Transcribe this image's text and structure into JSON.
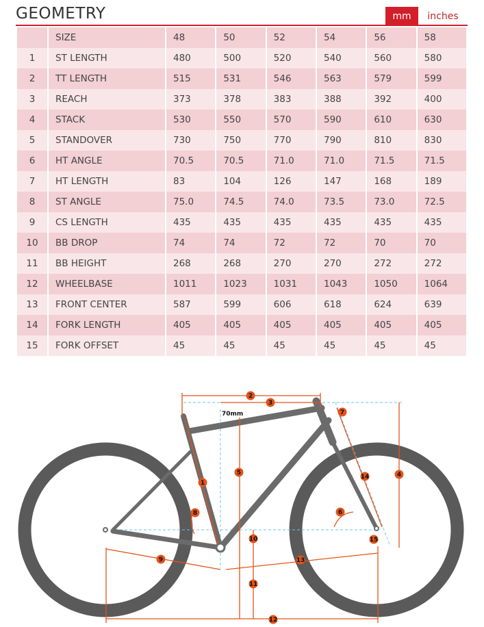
{
  "header": {
    "title": "GEOMETRY",
    "units": {
      "active": "mm",
      "inactive": "inches"
    }
  },
  "table": {
    "size_label": "SIZE",
    "sizes": [
      "48",
      "50",
      "52",
      "54",
      "56",
      "58"
    ],
    "rows": [
      {
        "num": "1",
        "label": "ST LENGTH",
        "values": [
          "480",
          "500",
          "520",
          "540",
          "560",
          "580"
        ]
      },
      {
        "num": "2",
        "label": "TT LENGTH",
        "values": [
          "515",
          "531",
          "546",
          "563",
          "579",
          "599"
        ]
      },
      {
        "num": "3",
        "label": "REACH",
        "values": [
          "373",
          "378",
          "383",
          "388",
          "392",
          "400"
        ]
      },
      {
        "num": "4",
        "label": "STACK",
        "values": [
          "530",
          "550",
          "570",
          "590",
          "610",
          "630"
        ]
      },
      {
        "num": "5",
        "label": "STANDOVER",
        "values": [
          "730",
          "750",
          "770",
          "790",
          "810",
          "830"
        ]
      },
      {
        "num": "6",
        "label": "HT ANGLE",
        "values": [
          "70.5",
          "70.5",
          "71.0",
          "71.0",
          "71.5",
          "71.5"
        ]
      },
      {
        "num": "7",
        "label": "HT LENGTH",
        "values": [
          "83",
          "104",
          "126",
          "147",
          "168",
          "189"
        ]
      },
      {
        "num": "8",
        "label": "ST ANGLE",
        "values": [
          "75.0",
          "74.5",
          "74.0",
          "73.5",
          "73.0",
          "72.5"
        ]
      },
      {
        "num": "9",
        "label": "CS LENGTH",
        "values": [
          "435",
          "435",
          "435",
          "435",
          "435",
          "435"
        ]
      },
      {
        "num": "10",
        "label": "BB DROP",
        "values": [
          "74",
          "74",
          "72",
          "72",
          "70",
          "70"
        ]
      },
      {
        "num": "11",
        "label": "BB HEIGHT",
        "values": [
          "268",
          "268",
          "270",
          "270",
          "272",
          "272"
        ]
      },
      {
        "num": "12",
        "label": "WHEELBASE",
        "values": [
          "1011",
          "1023",
          "1031",
          "1043",
          "1050",
          "1064"
        ]
      },
      {
        "num": "13",
        "label": "FRONT CENTER",
        "values": [
          "587",
          "599",
          "606",
          "618",
          "624",
          "639"
        ]
      },
      {
        "num": "14",
        "label": "FORK LENGTH",
        "values": [
          "405",
          "405",
          "405",
          "405",
          "405",
          "405"
        ]
      },
      {
        "num": "15",
        "label": "FORK OFFSET",
        "values": [
          "45",
          "45",
          "45",
          "45",
          "45",
          "45"
        ]
      }
    ]
  },
  "diagram": {
    "offset_label": "70mm",
    "markers": [
      "1",
      "2",
      "3",
      "4",
      "5",
      "6",
      "7",
      "8",
      "9",
      "10",
      "11",
      "12",
      "13",
      "14",
      "15"
    ],
    "colors": {
      "accent": "#d21f2a",
      "marker": "#e2541a",
      "dimension": "#e2541a",
      "guide": "#6ec6e6",
      "frame": "#6b6b6b",
      "tire": "#5a5a5a"
    }
  }
}
